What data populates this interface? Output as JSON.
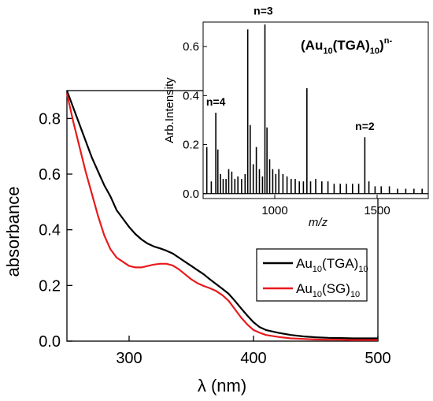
{
  "chart_data": [
    {
      "type": "line",
      "title": "",
      "xlabel": "λ (nm)",
      "ylabel": "absorbance",
      "xlim": [
        250,
        500
      ],
      "ylim": [
        0,
        0.9
      ],
      "x_ticks": [
        300,
        400,
        500
      ],
      "y_ticks": [
        0.0,
        0.2,
        0.4,
        0.6,
        0.8
      ],
      "x_tick_labels": [
        "300",
        "400",
        "500"
      ],
      "y_tick_labels": [
        "0.0",
        "0.2",
        "0.4",
        "0.6",
        "0.8"
      ],
      "legend_position": "middle-right",
      "series": [
        {
          "name": "Au10(TGA)10",
          "legend_main": "Au",
          "legend_sub1": "10",
          "legend_mid": "(TGA)",
          "legend_sub2": "10",
          "color": "#000000",
          "x": [
            250,
            255,
            260,
            265,
            270,
            275,
            280,
            285,
            290,
            295,
            300,
            305,
            310,
            315,
            320,
            325,
            330,
            335,
            340,
            345,
            350,
            355,
            360,
            365,
            370,
            375,
            380,
            385,
            390,
            395,
            400,
            405,
            410,
            420,
            430,
            440,
            450,
            460,
            470,
            480,
            490,
            500
          ],
          "y": [
            0.9,
            0.84,
            0.78,
            0.72,
            0.66,
            0.61,
            0.56,
            0.52,
            0.47,
            0.44,
            0.41,
            0.385,
            0.365,
            0.35,
            0.34,
            0.333,
            0.325,
            0.315,
            0.3,
            0.285,
            0.27,
            0.255,
            0.24,
            0.222,
            0.205,
            0.188,
            0.17,
            0.145,
            0.118,
            0.092,
            0.068,
            0.05,
            0.04,
            0.03,
            0.022,
            0.017,
            0.014,
            0.012,
            0.011,
            0.01,
            0.01,
            0.01
          ]
        },
        {
          "name": "Au10(SG)10",
          "legend_main": "Au",
          "legend_sub1": "10",
          "legend_mid": "(SG)",
          "legend_sub2": "10",
          "color": "#e8191c",
          "x": [
            250,
            255,
            260,
            265,
            270,
            275,
            280,
            285,
            290,
            295,
            300,
            305,
            310,
            315,
            320,
            325,
            330,
            335,
            340,
            345,
            350,
            355,
            360,
            365,
            370,
            375,
            380,
            385,
            390,
            395,
            400,
            405,
            410,
            420,
            430,
            440,
            450,
            460,
            470,
            480,
            490,
            500
          ],
          "y": [
            0.89,
            0.79,
            0.7,
            0.61,
            0.53,
            0.45,
            0.38,
            0.33,
            0.3,
            0.285,
            0.27,
            0.265,
            0.265,
            0.27,
            0.275,
            0.278,
            0.278,
            0.272,
            0.258,
            0.24,
            0.222,
            0.208,
            0.198,
            0.19,
            0.18,
            0.165,
            0.145,
            0.115,
            0.085,
            0.06,
            0.04,
            0.03,
            0.022,
            0.015,
            0.01,
            0.008,
            0.006,
            0.005,
            0.005,
            0.004,
            0.004,
            0.004
          ]
        }
      ]
    },
    {
      "type": "bar",
      "title": "(Au10(TGA)10)n-",
      "title_open": "(Au",
      "title_sub1": "10",
      "title_mid": "(TGA)",
      "title_sub2": "10",
      "title_close": ")",
      "title_sup": "n-",
      "xlabel": "m/z",
      "ylabel": "Arb.Intensity",
      "xlim": [
        650,
        1750
      ],
      "ylim": [
        -0.02,
        0.7
      ],
      "x_ticks": [
        1000,
        1500
      ],
      "y_ticks": [
        0.0,
        0.2,
        0.4,
        0.6
      ],
      "x_tick_labels": [
        "1000",
        "1500"
      ],
      "y_tick_labels": [
        "0.0",
        "0.2",
        "0.4",
        "0.6"
      ],
      "annotations": [
        {
          "text": "n=4",
          "x": 712,
          "y": 0.36
        },
        {
          "text": "n=3",
          "x": 944,
          "y": 0.73
        },
        {
          "text": "n=2",
          "x": 1440,
          "y": 0.26
        }
      ],
      "peaks": {
        "x": [
          668,
          690,
          712,
          722,
          735,
          748,
          762,
          775,
          790,
          805,
          820,
          838,
          855,
          868,
          880,
          895,
          910,
          925,
          940,
          952,
          962,
          975,
          990,
          1005,
          1020,
          1040,
          1060,
          1080,
          1100,
          1120,
          1140,
          1157,
          1175,
          1200,
          1230,
          1260,
          1290,
          1320,
          1350,
          1380,
          1410,
          1440,
          1460,
          1490,
          1520,
          1560,
          1600,
          1640,
          1680,
          1720
        ],
        "y": [
          0.19,
          0.05,
          0.33,
          0.18,
          0.08,
          0.06,
          0.06,
          0.1,
          0.09,
          0.06,
          0.07,
          0.06,
          0.08,
          0.67,
          0.28,
          0.12,
          0.19,
          0.1,
          0.07,
          0.69,
          0.27,
          0.14,
          0.1,
          0.08,
          0.1,
          0.08,
          0.07,
          0.06,
          0.06,
          0.05,
          0.05,
          0.43,
          0.05,
          0.06,
          0.05,
          0.05,
          0.04,
          0.04,
          0.04,
          0.04,
          0.04,
          0.23,
          0.05,
          0.03,
          0.03,
          0.03,
          0.02,
          0.02,
          0.02,
          0.02
        ]
      }
    }
  ]
}
